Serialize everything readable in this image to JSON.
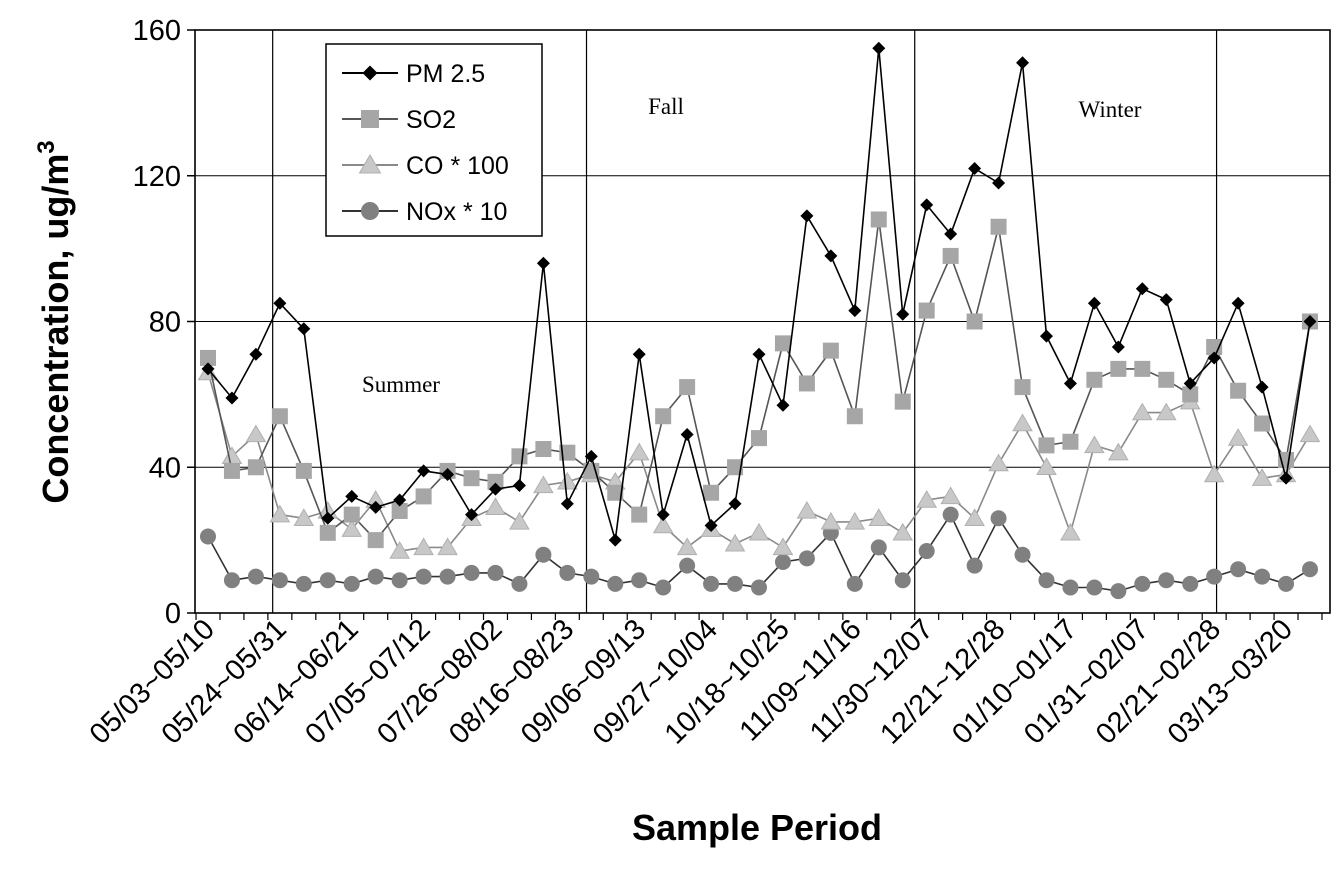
{
  "chart_data": {
    "type": "line",
    "xlabel": "Sample Period",
    "ylabel": "Concentration, ug/m",
    "ylabel_superscript": "3",
    "ylim": [
      0,
      160
    ],
    "yticks": [
      "0",
      "40",
      "80",
      "120",
      "160"
    ],
    "grid": true,
    "legend_position": "top-left",
    "xtick_labels": [
      "05/03~05/10",
      "05/24~05/31",
      "06/14~06/21",
      "07/05~07/12",
      "07/26~08/02",
      "08/16~08/23",
      "09/06~09/13",
      "09/27~10/04",
      "10/18~10/25",
      "11/09~11/16",
      "11/30~12/07",
      "12/21~12/28",
      "01/10~01/17",
      "01/31~02/07",
      "02/21~02/28",
      "03/13~03/20"
    ],
    "season_labels": [
      "Summer",
      "Fall",
      "Winter"
    ],
    "series": [
      {
        "name": "PM 2.5",
        "color": "#000000",
        "marker": "diamond",
        "values": [
          67,
          59,
          71,
          85,
          78,
          26,
          32,
          29,
          31,
          39,
          38,
          27,
          34,
          35,
          96,
          30,
          43,
          20,
          71,
          27,
          49,
          24,
          30,
          71,
          57,
          109,
          98,
          83,
          155,
          82,
          112,
          104,
          122,
          118,
          151,
          76,
          63,
          85,
          73,
          89,
          86,
          63,
          70,
          85,
          62,
          37,
          80
        ]
      },
      {
        "name": "SO2",
        "color": "#a6a6a6",
        "marker": "square",
        "values": [
          70,
          39,
          40,
          54,
          39,
          22,
          27,
          20,
          28,
          32,
          39,
          37,
          36,
          43,
          45,
          44,
          39,
          33,
          27,
          54,
          62,
          33,
          40,
          48,
          74,
          63,
          72,
          54,
          108,
          58,
          83,
          98,
          80,
          106,
          62,
          46,
          47,
          64,
          67,
          67,
          64,
          60,
          73,
          61,
          52,
          42,
          80
        ]
      },
      {
        "name": "CO * 100",
        "color": "#c8c8c8",
        "marker": "triangle",
        "values": [
          66,
          43,
          49,
          27,
          26,
          28,
          23,
          31,
          17,
          18,
          18,
          26,
          29,
          25,
          35,
          36,
          38,
          36,
          44,
          24,
          18,
          23,
          19,
          22,
          18,
          28,
          25,
          25,
          26,
          22,
          31,
          32,
          26,
          41,
          52,
          40,
          22,
          46,
          44,
          55,
          55,
          58,
          38,
          48,
          37,
          38,
          49
        ]
      },
      {
        "name": "NOx * 10",
        "color": "#808080",
        "marker": "circle",
        "values": [
          21,
          9,
          10,
          9,
          8,
          9,
          8,
          10,
          9,
          10,
          10,
          11,
          11,
          8,
          16,
          11,
          10,
          8,
          9,
          7,
          13,
          8,
          8,
          7,
          14,
          15,
          22,
          8,
          18,
          9,
          17,
          27,
          13,
          26,
          16,
          9,
          7,
          7,
          6,
          8,
          9,
          8,
          10,
          12,
          10,
          8,
          12
        ]
      }
    ],
    "season_dividers_after_point": [
      2.7,
      15.8,
      29.5,
      42.1
    ]
  }
}
